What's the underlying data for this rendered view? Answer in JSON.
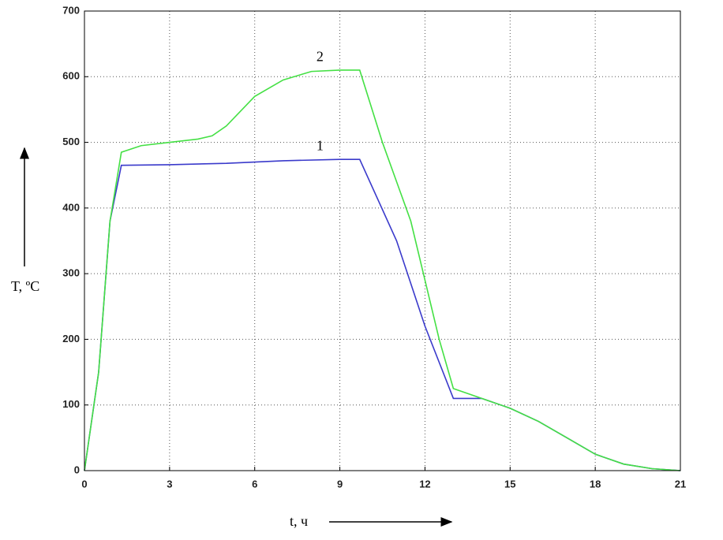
{
  "chart_data": {
    "type": "line",
    "xlabel": "t, ч",
    "ylabel": "T, ºC",
    "xlim": [
      0,
      21
    ],
    "ylim": [
      0,
      700
    ],
    "xticks": [
      0,
      3,
      6,
      9,
      12,
      15,
      18,
      21
    ],
    "yticks": [
      0,
      100,
      200,
      300,
      400,
      500,
      600,
      700
    ],
    "grid": true,
    "series": [
      {
        "name": "1",
        "color": "#3a3acb",
        "x": [
          0,
          0.5,
          0.9,
          1.3,
          3,
          5,
          7,
          9,
          9.7,
          11,
          12,
          13,
          14,
          15,
          16,
          17,
          18,
          19,
          20,
          21
        ],
        "values": [
          0,
          150,
          380,
          465,
          466,
          468,
          472,
          474,
          474,
          350,
          220,
          110,
          110,
          95,
          75,
          50,
          25,
          10,
          3,
          0
        ]
      },
      {
        "name": "2",
        "color": "#44e044",
        "x": [
          0,
          0.5,
          0.9,
          1.3,
          2,
          3,
          4,
          4.5,
          5,
          6,
          7,
          8,
          9,
          9.7,
          10.5,
          11.5,
          12,
          12.5,
          13,
          14,
          15,
          16,
          17,
          18,
          19,
          20,
          21
        ],
        "values": [
          0,
          150,
          380,
          485,
          495,
          500,
          505,
          510,
          525,
          570,
          595,
          608,
          610,
          610,
          500,
          380,
          290,
          200,
          125,
          110,
          95,
          75,
          50,
          25,
          10,
          3,
          0
        ]
      }
    ],
    "annotations": [
      {
        "text": "1",
        "x": 8.3,
        "y": 493
      },
      {
        "text": "2",
        "x": 8.3,
        "y": 629
      }
    ]
  }
}
